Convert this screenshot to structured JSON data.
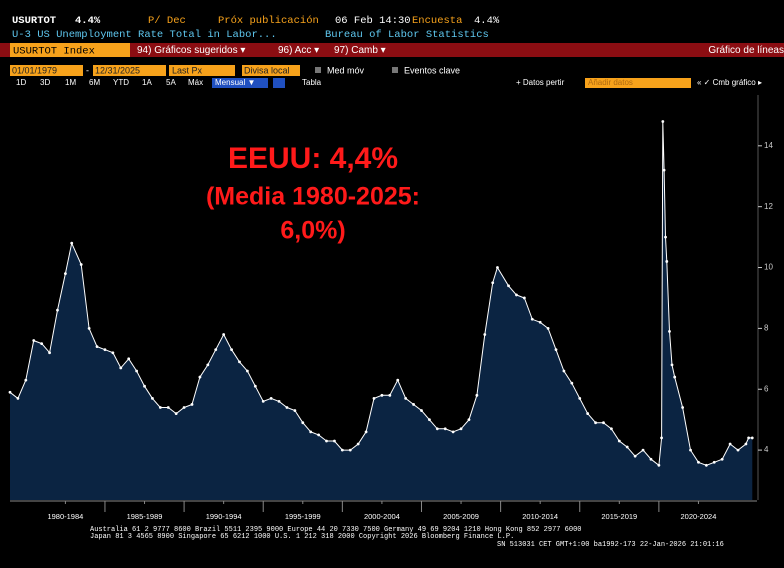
{
  "header": {
    "ticker": "USURTOT",
    "last": "4.4%",
    "period": "P/ Dec",
    "next_label": "Próx publicación",
    "next_date": "06 Feb 14:30",
    "survey_label": "Encuesta",
    "survey": "4.4%",
    "description": "U-3 US Unemployment Rate Total in Labor...",
    "source": "Bureau of Labor Statistics"
  },
  "toolbar": {
    "security": "USURTOT Index",
    "menus": [
      "94) Gráficos sugeridos ▾",
      "96) Acc ▾",
      "97) Camb ▾"
    ],
    "chart_kind": "Gráfico de líneas",
    "start_date": "01/01/1979",
    "dash": "-",
    "end_date": "12/31/2025",
    "field": "Last Px",
    "currency": "Divisa local",
    "moving_avg": "Med móv",
    "events": "Eventos clave",
    "ranges": [
      "1D",
      "3D",
      "1M",
      "6M",
      "YTD",
      "1A",
      "5A",
      "Máx"
    ],
    "frequency": "Mensual ▼",
    "table": "Tabla",
    "add_more": "+ Datos pertir",
    "add_data": "Añadir datos",
    "change_chart": "« ✓ Cmb gráfico ▸"
  },
  "footer": [
    "Australia 61 2 9777 8600 Brazil 5511 2395 9000 Europe 44 20 7330 7500 Germany 49 69 9204 1210 Hong Kong 852 2977 6000",
    "Japan 81 3 4565 8900      Singapore 65 6212 1000      U.S. 1 212 318 2000           Copyright 2026 Bloomberg Finance L.P.",
    "SN 513031 CET  GMT+1:00 ba1992-173 22-Jan-2026 21:01:16"
  ],
  "chart_data": {
    "type": "area",
    "annotations": [
      "EEUU: 4,4%",
      "(Media 1980-2025:",
      "6,0%)"
    ],
    "x": [
      1979.0,
      1979.5,
      1980.0,
      1980.5,
      1981.0,
      1981.5,
      1982.0,
      1982.5,
      1982.9,
      1983.5,
      1984.0,
      1984.5,
      1985.0,
      1985.5,
      1986.0,
      1986.5,
      1987.0,
      1987.5,
      1988.0,
      1988.5,
      1989.0,
      1989.5,
      1990.0,
      1990.5,
      1991.0,
      1991.5,
      1992.0,
      1992.5,
      1993.0,
      1993.5,
      1994.0,
      1994.5,
      1995.0,
      1995.5,
      1996.0,
      1996.5,
      1997.0,
      1997.5,
      1998.0,
      1998.5,
      1999.0,
      1999.5,
      2000.0,
      2000.5,
      2001.0,
      2001.5,
      2002.0,
      2002.5,
      2003.0,
      2003.5,
      2004.0,
      2004.5,
      2005.0,
      2005.5,
      2006.0,
      2006.5,
      2007.0,
      2007.5,
      2008.0,
      2008.5,
      2009.0,
      2009.5,
      2009.8,
      2010.5,
      2011.0,
      2011.5,
      2012.0,
      2012.5,
      2013.0,
      2013.5,
      2014.0,
      2014.5,
      2015.0,
      2015.5,
      2016.0,
      2016.5,
      2017.0,
      2017.5,
      2018.0,
      2018.5,
      2019.0,
      2019.5,
      2020.0,
      2020.17,
      2020.25,
      2020.33,
      2020.42,
      2020.5,
      2020.67,
      2020.83,
      2021.0,
      2021.5,
      2022.0,
      2022.5,
      2023.0,
      2023.5,
      2024.0,
      2024.5,
      2025.0,
      2025.5,
      2025.67,
      2025.9
    ],
    "values": [
      5.9,
      5.7,
      6.3,
      7.6,
      7.5,
      7.2,
      8.6,
      9.8,
      10.8,
      10.1,
      8.0,
      7.4,
      7.3,
      7.2,
      6.7,
      7.0,
      6.6,
      6.1,
      5.7,
      5.4,
      5.4,
      5.2,
      5.4,
      5.5,
      6.4,
      6.8,
      7.3,
      7.8,
      7.3,
      6.9,
      6.6,
      6.1,
      5.6,
      5.7,
      5.6,
      5.4,
      5.3,
      4.9,
      4.6,
      4.5,
      4.3,
      4.3,
      4.0,
      4.0,
      4.2,
      4.6,
      5.7,
      5.8,
      5.8,
      6.3,
      5.7,
      5.5,
      5.3,
      5.0,
      4.7,
      4.7,
      4.6,
      4.7,
      5.0,
      5.8,
      7.8,
      9.5,
      10.0,
      9.4,
      9.1,
      9.0,
      8.3,
      8.2,
      8.0,
      7.3,
      6.6,
      6.2,
      5.7,
      5.2,
      4.9,
      4.9,
      4.7,
      4.3,
      4.1,
      3.8,
      4.0,
      3.7,
      3.5,
      4.4,
      14.8,
      13.2,
      11.0,
      10.2,
      7.9,
      6.8,
      6.4,
      5.4,
      4.0,
      3.6,
      3.5,
      3.6,
      3.7,
      4.2,
      4.0,
      4.2,
      4.4,
      4.4
    ],
    "line_color": "#ffffff",
    "fill_color": "#0b2442",
    "xlim": [
      1979,
      2026.2
    ],
    "ylim": [
      2.36,
      15.67
    ],
    "xticks": [
      {
        "value": 1982.5,
        "label": "1980-1984"
      },
      {
        "value": 1987.5,
        "label": "1985-1989"
      },
      {
        "value": 1992.5,
        "label": "1990-1994"
      },
      {
        "value": 1997.5,
        "label": "1995-1999"
      },
      {
        "value": 2002.5,
        "label": "2000-2004"
      },
      {
        "value": 2007.5,
        "label": "2005-2009"
      },
      {
        "value": 2012.5,
        "label": "2010-2014"
      },
      {
        "value": 2017.5,
        "label": "2015-2019"
      },
      {
        "value": 2022.5,
        "label": "2020-2024"
      }
    ],
    "yticks": [
      4,
      6,
      8,
      10,
      12,
      14
    ]
  }
}
